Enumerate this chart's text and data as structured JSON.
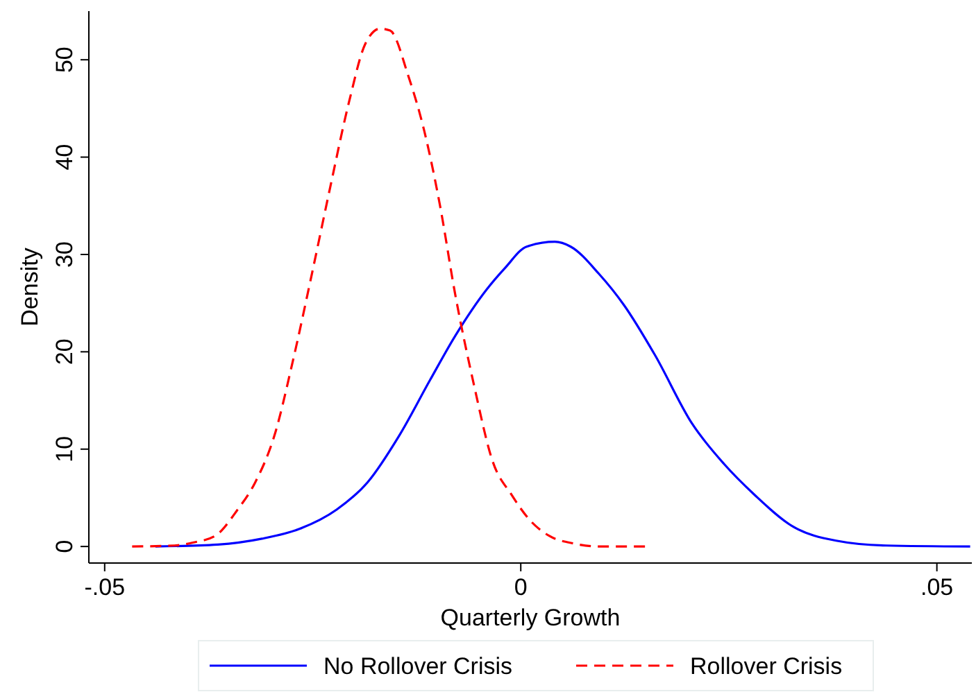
{
  "chart_data": {
    "type": "line",
    "xlabel": "Quarterly Growth",
    "ylabel": "Density",
    "xlim": [
      -0.0519,
      0.0542
    ],
    "ylim": [
      -1.7,
      55
    ],
    "xticks": [
      {
        "value": -0.05,
        "label": "-.05"
      },
      {
        "value": 0,
        "label": "0"
      },
      {
        "value": 0.05,
        "label": ".05"
      }
    ],
    "yticks": [
      0,
      10,
      20,
      30,
      40,
      50
    ],
    "grid": false,
    "legend": "bottom",
    "marker": "none",
    "series": [
      {
        "name": "No Rollover Crisis",
        "color": "#0000ff",
        "line_style": "solid",
        "x": [
          -0.0439,
          -0.0364,
          -0.0311,
          -0.0266,
          -0.0221,
          -0.0184,
          -0.0146,
          -0.0109,
          -0.0079,
          -0.0041,
          -0.0019,
          0.0007,
          0.0041,
          0.006,
          0.0094,
          0.0124,
          0.0161,
          0.0206,
          0.0244,
          0.0281,
          0.0326,
          0.0379,
          0.0439,
          0.054
        ],
        "values": [
          0,
          0.2,
          0.8,
          1.8,
          3.8,
          6.6,
          11.4,
          17.1,
          21.6,
          26.4,
          28.6,
          30.8,
          31.3,
          30.8,
          28,
          24.8,
          19.7,
          12.6,
          8.5,
          5.3,
          2.1,
          0.6,
          0.1,
          0
        ]
      },
      {
        "name": "Rollover Crisis",
        "color": "#ff0000",
        "line_style": "dashed",
        "x": [
          -0.0467,
          -0.0416,
          -0.0394,
          -0.0367,
          -0.0341,
          -0.0319,
          -0.0296,
          -0.0274,
          -0.0251,
          -0.0229,
          -0.0206,
          -0.0187,
          -0.0169,
          -0.0157,
          -0.0135,
          -0.0116,
          -0.0097,
          -0.0079,
          -0.0056,
          -0.0034,
          -0.0011,
          0.0011,
          0.0034,
          0.0064,
          0.0094,
          0.0154
        ],
        "values": [
          0,
          0.1,
          0.4,
          1.1,
          3.7,
          6.6,
          11.4,
          19,
          28,
          36.9,
          45.8,
          51.6,
          53.2,
          53,
          48.3,
          42.7,
          35,
          26,
          16.5,
          8.8,
          5.3,
          2.7,
          1.1,
          0.3,
          0,
          0
        ]
      }
    ]
  }
}
